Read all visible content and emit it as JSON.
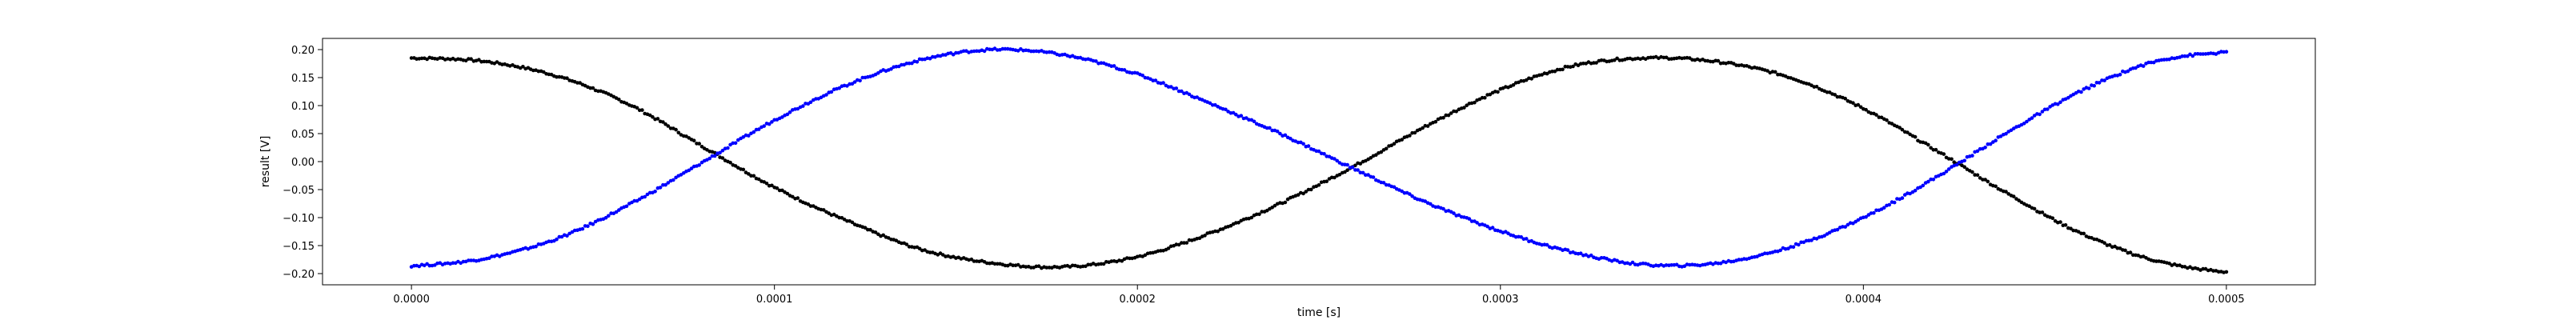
{
  "chart_data": {
    "type": "scatter",
    "title": "",
    "xlabel": "time [s]",
    "ylabel": "result [V]",
    "xlim": [
      -2.45e-05,
      0.0005245
    ],
    "ylim": [
      -0.22,
      0.22
    ],
    "x_ticks": [
      0.0,
      0.0001,
      0.0002,
      0.0003,
      0.0004,
      0.0005
    ],
    "x_tick_labels": [
      "0.0000",
      "0.0001",
      "0.0002",
      "0.0003",
      "0.0004",
      "0.0005"
    ],
    "y_ticks": [
      0.2,
      0.15,
      0.1,
      0.05,
      0.0,
      -0.05,
      -0.1,
      -0.15,
      -0.2
    ],
    "y_tick_labels": [
      "0.20",
      "0.15",
      "0.10",
      "0.05",
      "0.00",
      "−0.05",
      "−0.10",
      "−0.15",
      "−0.20"
    ],
    "grid": false,
    "legend": "none",
    "series": [
      {
        "color": "#000000",
        "marker": "dot",
        "x": [
          0,
          2e-05,
          4e-05,
          6e-05,
          8e-05,
          0.0001,
          0.00012,
          0.00014,
          0.00016,
          0.00018,
          0.0002,
          0.00022,
          0.00024,
          0.00026,
          0.00028,
          0.0003,
          0.00032,
          0.00034,
          0.00036,
          0.00038,
          0.0004,
          0.00042,
          0.00044,
          0.00046,
          0.00048,
          0.0005
        ],
        "y": [
          0.185,
          0.179,
          0.153,
          0.102,
          0.028,
          -0.046,
          -0.106,
          -0.156,
          -0.181,
          -0.188,
          -0.17,
          -0.128,
          -0.073,
          -0.007,
          0.065,
          0.128,
          0.171,
          0.185,
          0.178,
          0.15,
          0.095,
          0.02,
          -0.058,
          -0.128,
          -0.176,
          -0.197
        ]
      },
      {
        "color": "#0000ff",
        "marker": "dot",
        "x": [
          0,
          2e-05,
          4e-05,
          6e-05,
          8e-05,
          0.0001,
          0.00012,
          0.00014,
          0.00016,
          0.00018,
          0.0002,
          0.00022,
          0.00024,
          0.00026,
          0.00028,
          0.0003,
          0.00032,
          0.00034,
          0.00036,
          0.00038,
          0.0004,
          0.00042,
          0.00044,
          0.00046,
          0.00048,
          0.0005
        ],
        "y": [
          -0.186,
          -0.173,
          -0.138,
          -0.077,
          -0.002,
          0.074,
          0.137,
          0.181,
          0.2,
          0.19,
          0.156,
          0.104,
          0.048,
          -0.014,
          -0.074,
          -0.124,
          -0.162,
          -0.184,
          -0.181,
          -0.152,
          -0.1,
          -0.028,
          0.053,
          0.126,
          0.178,
          0.195
        ]
      }
    ]
  }
}
